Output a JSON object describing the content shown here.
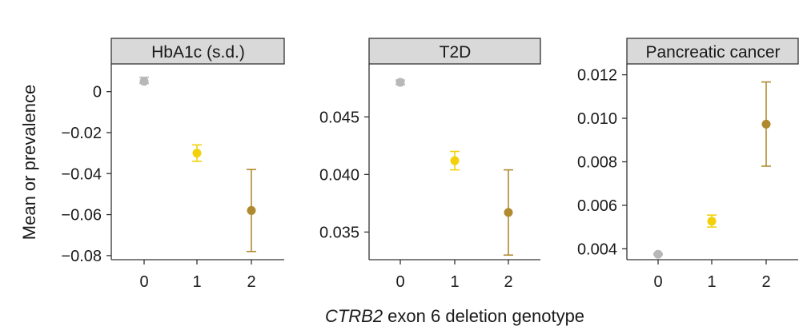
{
  "figure": {
    "ylabel": "Mean or prevalence",
    "xlabel_italic": "CTRB2",
    "xlabel_rest": " exon 6 deletion genotype"
  },
  "chart_data": [
    {
      "type": "scatter",
      "title": "HbA1c (s.d.)",
      "categories": [
        "0",
        "1",
        "2"
      ],
      "values": [
        0.005,
        -0.03,
        -0.058
      ],
      "err_low": [
        0.004,
        -0.034,
        -0.078
      ],
      "err_high": [
        0.007,
        -0.026,
        -0.038
      ],
      "colors": [
        "#b8b8b8",
        "#f2d10a",
        "#b08a2e"
      ],
      "ylim": [
        -0.082,
        0.0135
      ],
      "yticks": [
        0,
        -0.02,
        -0.04,
        -0.06,
        -0.08
      ],
      "ytick_labels": [
        "0",
        "−0.02",
        "−0.04",
        "−0.06",
        "−0.08"
      ]
    },
    {
      "type": "scatter",
      "title": "T2D",
      "categories": [
        "0",
        "1",
        "2"
      ],
      "values": [
        0.048,
        0.0412,
        0.0367
      ],
      "err_low": [
        0.0478,
        0.0404,
        0.033
      ],
      "err_high": [
        0.0482,
        0.042,
        0.0404
      ],
      "colors": [
        "#b8b8b8",
        "#f2d10a",
        "#b08a2e"
      ],
      "ylim": [
        0.0326,
        0.0496
      ],
      "yticks": [
        0.045,
        0.04,
        0.035
      ],
      "ytick_labels": [
        "0.045",
        "0.040",
        "0.035"
      ]
    },
    {
      "type": "scatter",
      "title": "Pancreatic cancer",
      "categories": [
        "0",
        "1",
        "2"
      ],
      "values": [
        0.00375,
        0.00527,
        0.00973
      ],
      "err_low": [
        0.00372,
        0.005,
        0.0078
      ],
      "err_high": [
        0.00378,
        0.00555,
        0.01167
      ],
      "colors": [
        "#b8b8b8",
        "#f2d10a",
        "#b08a2e"
      ],
      "ylim": [
        0.0035,
        0.0125
      ],
      "yticks": [
        0.012,
        0.01,
        0.008,
        0.006,
        0.004
      ],
      "ytick_labels": [
        "0.012",
        "0.010",
        "0.008",
        "0.006",
        "0.004"
      ]
    }
  ]
}
